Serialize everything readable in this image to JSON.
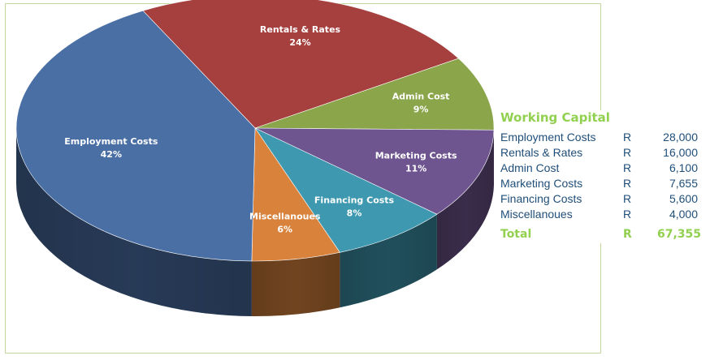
{
  "chart_data": {
    "type": "pie",
    "style": "3d",
    "categories": [
      "Employment Costs",
      "Rentals & Rates",
      "Admin Cost",
      "Marketing Costs",
      "Financing  Costs",
      "Miscellanoues"
    ],
    "values": [
      42,
      24,
      9,
      11,
      8,
      6
    ],
    "value_labels": [
      "42%",
      "24%",
      "9%",
      "11%",
      "8%",
      "6%"
    ],
    "colors": [
      "#4a6fa5",
      "#a6403e",
      "#8aa54a",
      "#6e5590",
      "#3e98b0",
      "#d9823c"
    ],
    "legend": "none"
  },
  "summary": {
    "title": "Working Capital",
    "rows": [
      {
        "name": "Employment Costs",
        "currency": "R",
        "amount": "28,000"
      },
      {
        "name": "Rentals & Rates",
        "currency": "R",
        "amount": "16,000"
      },
      {
        "name": "Admin Cost",
        "currency": "R",
        "amount": "6,100"
      },
      {
        "name": "Marketing Costs",
        "currency": "R",
        "amount": "7,655"
      },
      {
        "name": "Financing Costs",
        "currency": "R",
        "amount": "5,600"
      },
      {
        "name": "Miscellanoues",
        "currency": "R",
        "amount": "4,000"
      }
    ],
    "total": {
      "name": "Total",
      "currency": "R",
      "amount": "67,355"
    }
  }
}
